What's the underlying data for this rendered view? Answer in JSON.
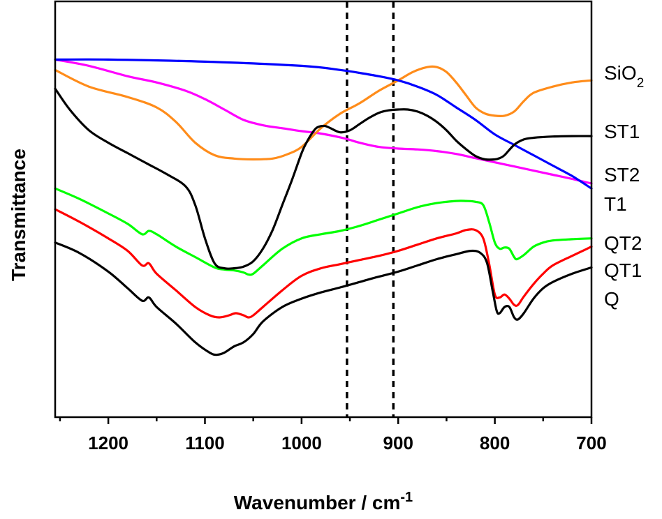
{
  "chart_data": {
    "type": "line",
    "xlabel": "Wavenumber / cm",
    "xlabel_sup": "-1",
    "ylabel": "Transmittance",
    "xlim": [
      1255,
      700
    ],
    "x_reversed": true,
    "y_ticks_shown": false,
    "grid": false,
    "legend": "none (series labelled at right end of lines)",
    "x_ticks": [
      1200,
      1100,
      1000,
      900,
      800,
      700
    ],
    "reference_lines": [
      {
        "x": 953,
        "style": "dashed"
      },
      {
        "x": 905,
        "style": "dashed"
      }
    ],
    "series": [
      {
        "name": "SiO",
        "name_sub": "2",
        "color": "#ff8c1a",
        "x": [
          1255,
          1220,
          1180,
          1150,
          1130,
          1110,
          1090,
          1070,
          1050,
          1030,
          1015,
          1000,
          980,
          960,
          940,
          920,
          900,
          885,
          870,
          860,
          850,
          840,
          830,
          820,
          810,
          800,
          790,
          780,
          770,
          760,
          740,
          720,
          700
        ],
        "y": [
          83.5,
          79.5,
          77.0,
          74.5,
          71.0,
          66.0,
          63.0,
          62.2,
          62.0,
          62.2,
          63.2,
          65.0,
          69.5,
          73.0,
          75.5,
          78.5,
          81.0,
          83.0,
          84.2,
          84.2,
          83.0,
          80.5,
          77.5,
          74.5,
          73.0,
          72.5,
          72.5,
          73.5,
          76.0,
          78.0,
          79.5,
          80.5,
          81.0
        ]
      },
      {
        "name": "ST1",
        "color": "#000000",
        "x": [
          1255,
          1240,
          1220,
          1200,
          1180,
          1160,
          1140,
          1120,
          1110,
          1100,
          1090,
          1080,
          1070,
          1060,
          1050,
          1040,
          1030,
          1020,
          1010,
          1000,
          995,
          990,
          985,
          980,
          975,
          970,
          960,
          950,
          940,
          930,
          920,
          910,
          900,
          890,
          880,
          870,
          860,
          850,
          840,
          830,
          820,
          810,
          800,
          795,
          790,
          780,
          770,
          760,
          740,
          720,
          700
        ],
        "y": [
          79.0,
          74.0,
          69.0,
          66.0,
          63.5,
          61.0,
          58.5,
          55.5,
          51.0,
          43.0,
          37.0,
          35.8,
          35.8,
          36.2,
          37.5,
          40.5,
          45.0,
          51.0,
          57.0,
          63.5,
          66.0,
          68.0,
          69.5,
          70.0,
          70.0,
          69.5,
          68.5,
          69.0,
          70.5,
          72.0,
          73.2,
          73.8,
          74.0,
          74.0,
          73.5,
          72.5,
          71.0,
          69.0,
          66.5,
          64.5,
          62.8,
          62.0,
          62.0,
          62.3,
          63.0,
          65.5,
          66.8,
          67.2,
          67.5,
          67.6,
          67.6
        ]
      },
      {
        "name": "ST2",
        "color": "#ff00ff",
        "x": [
          1255,
          1220,
          1180,
          1150,
          1120,
          1100,
          1080,
          1060,
          1040,
          1020,
          1000,
          980,
          960,
          950,
          940,
          920,
          900,
          880,
          860,
          840,
          820,
          800,
          780,
          760,
          740,
          720,
          700
        ],
        "y": [
          86.0,
          84.5,
          82.0,
          80.5,
          78.5,
          76.5,
          74.0,
          71.5,
          70.2,
          69.5,
          68.8,
          68.2,
          67.3,
          66.7,
          66.0,
          65.0,
          64.6,
          64.4,
          64.0,
          63.3,
          62.3,
          61.3,
          60.3,
          59.3,
          58.3,
          57.3,
          56.2
        ]
      },
      {
        "name": "T1",
        "color": "#0000ff",
        "x": [
          1255,
          1200,
          1100,
          1000,
          960,
          940,
          920,
          900,
          880,
          860,
          840,
          820,
          800,
          780,
          760,
          740,
          720,
          700
        ],
        "y": [
          86.0,
          86.0,
          85.5,
          84.5,
          83.5,
          82.8,
          82.0,
          81.0,
          79.5,
          77.5,
          74.5,
          71.5,
          68.0,
          65.5,
          63.0,
          60.5,
          58.0,
          55.0
        ]
      },
      {
        "name": "QT2",
        "color": "#00ff00",
        "x": [
          1255,
          1230,
          1200,
          1180,
          1165,
          1158,
          1150,
          1130,
          1110,
          1090,
          1080,
          1070,
          1060,
          1055,
          1050,
          1040,
          1020,
          1000,
          980,
          960,
          940,
          920,
          900,
          880,
          860,
          840,
          830,
          820,
          812,
          806,
          800,
          795,
          790,
          785,
          780,
          777,
          770,
          760,
          750,
          740,
          720,
          700
        ],
        "y": [
          55.0,
          52.5,
          49.0,
          46.5,
          44.0,
          44.8,
          44.0,
          41.0,
          38.5,
          36.0,
          35.5,
          35.3,
          34.8,
          34.3,
          34.5,
          36.5,
          40.5,
          43.0,
          44.0,
          44.8,
          46.0,
          47.5,
          49.0,
          50.5,
          51.5,
          52.0,
          52.0,
          51.8,
          51.0,
          47.0,
          42.0,
          40.5,
          40.8,
          40.5,
          38.5,
          38.0,
          39.0,
          41.0,
          42.0,
          42.5,
          42.8,
          43.0
        ]
      },
      {
        "name": "QT1",
        "color": "#ff0000",
        "x": [
          1255,
          1230,
          1200,
          1180,
          1165,
          1158,
          1150,
          1130,
          1110,
          1095,
          1085,
          1075,
          1068,
          1060,
          1055,
          1050,
          1040,
          1020,
          1000,
          980,
          960,
          940,
          920,
          900,
          880,
          860,
          840,
          830,
          820,
          812,
          806,
          800,
          795,
          790,
          785,
          780,
          776,
          770,
          760,
          750,
          740,
          720,
          700
        ],
        "y": [
          50.0,
          47.0,
          43.0,
          40.0,
          36.5,
          37.0,
          34.5,
          30.5,
          26.5,
          24.5,
          24.0,
          24.5,
          25.0,
          24.5,
          24.0,
          24.5,
          26.5,
          30.5,
          34.0,
          35.8,
          36.8,
          37.8,
          38.8,
          40.0,
          41.5,
          43.0,
          44.2,
          45.0,
          45.0,
          43.0,
          37.0,
          29.5,
          28.8,
          29.5,
          28.5,
          27.0,
          27.0,
          29.0,
          32.0,
          34.5,
          36.5,
          38.8,
          41.0
        ]
      },
      {
        "name": "Q",
        "color": "#000000",
        "x": [
          1255,
          1230,
          1200,
          1180,
          1165,
          1158,
          1150,
          1130,
          1110,
          1095,
          1088,
          1080,
          1070,
          1060,
          1050,
          1040,
          1020,
          1000,
          980,
          960,
          940,
          920,
          900,
          880,
          860,
          840,
          825,
          815,
          808,
          802,
          798,
          795,
          790,
          785,
          780,
          776,
          770,
          760,
          750,
          740,
          720,
          700
        ],
        "y": [
          42.0,
          39.5,
          35.0,
          31.0,
          28.0,
          28.8,
          26.5,
          22.5,
          18.0,
          15.5,
          15.0,
          15.5,
          17.0,
          18.0,
          20.0,
          23.0,
          26.5,
          28.5,
          30.0,
          31.2,
          32.5,
          33.8,
          35.0,
          36.5,
          38.0,
          39.2,
          40.0,
          39.5,
          37.0,
          30.0,
          25.5,
          25.0,
          26.5,
          26.5,
          24.0,
          23.5,
          25.0,
          28.5,
          31.0,
          32.5,
          34.5,
          36.0
        ]
      }
    ]
  }
}
